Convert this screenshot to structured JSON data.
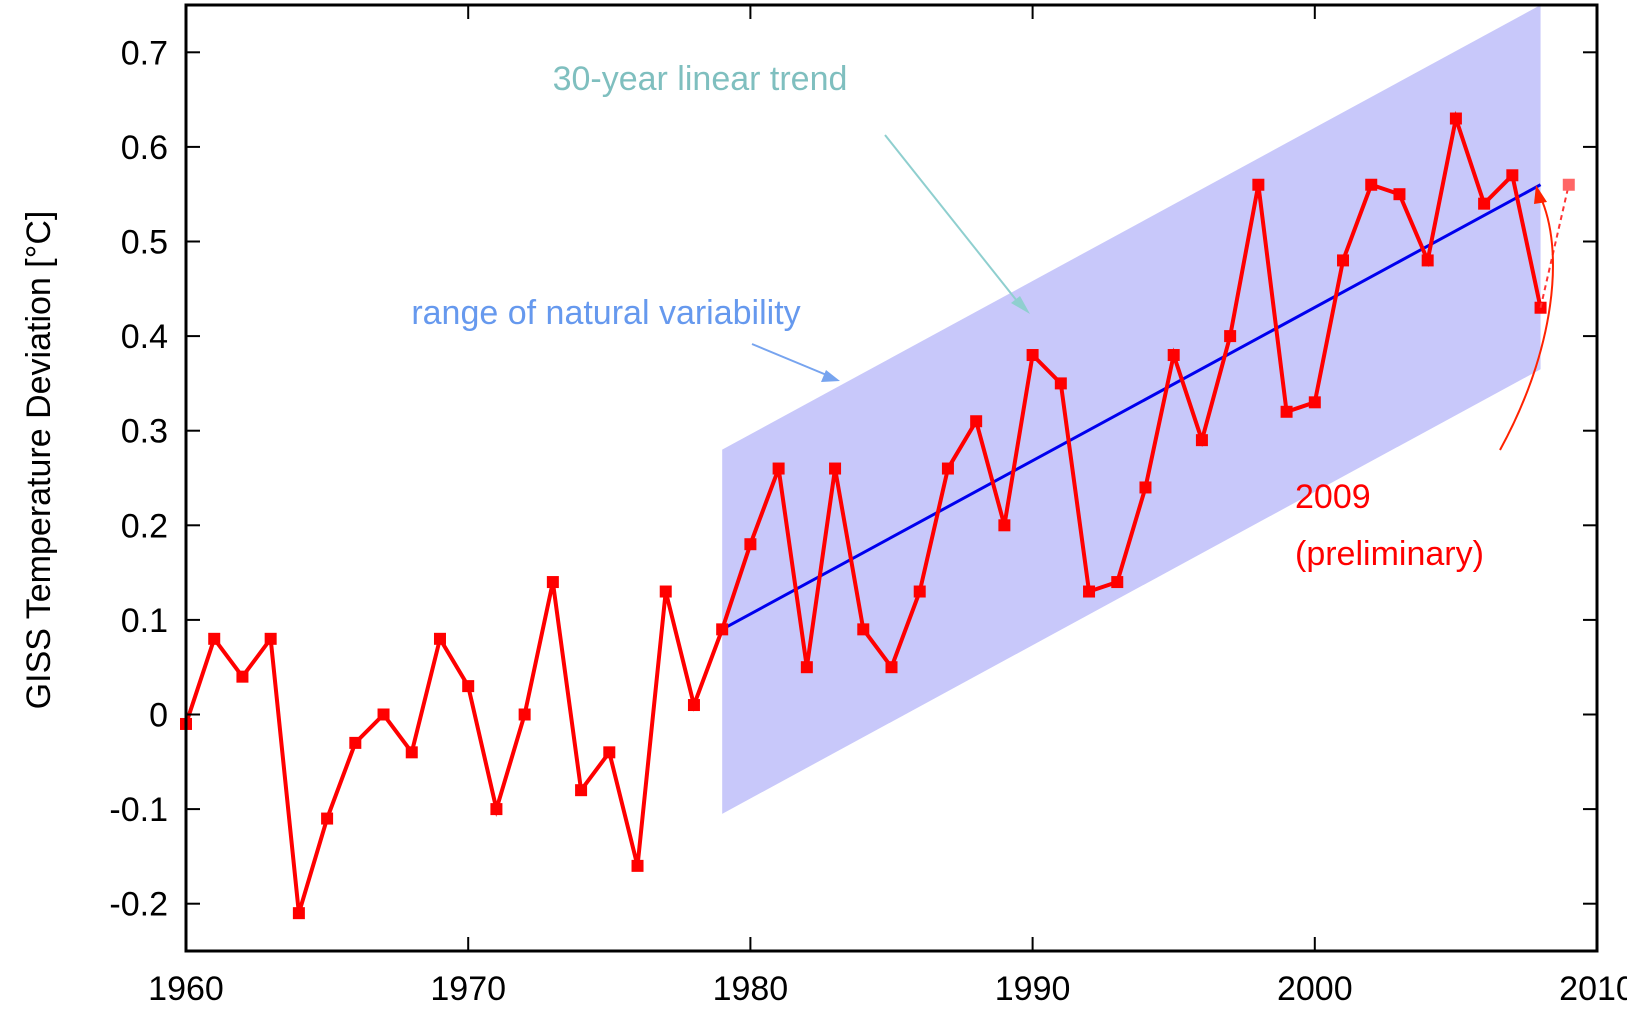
{
  "chart_data": {
    "type": "line",
    "ylabel": "GISS Temperature Deviation [°C]",
    "xlabel": "",
    "xlim": [
      1960,
      2010
    ],
    "ylim": [
      -0.25,
      0.75
    ],
    "x_ticks": [
      1960,
      1970,
      1980,
      1990,
      2000,
      2010
    ],
    "y_ticks": [
      -0.2,
      -0.1,
      0,
      0.1,
      0.2,
      0.3,
      0.4,
      0.5,
      0.6,
      0.7
    ],
    "x_tick_labels": [
      "1960",
      "1970",
      "1980",
      "1990",
      "2000",
      "2010"
    ],
    "y_tick_labels": [
      "-0.2",
      "-0.1",
      "0",
      "0.1",
      "0.2",
      "0.3",
      "0.4",
      "0.5",
      "0.6",
      "0.7"
    ],
    "grid": false,
    "series": [
      {
        "color": "#ff0000",
        "x": [
          1960,
          1961,
          1962,
          1963,
          1964,
          1965,
          1966,
          1967,
          1968,
          1969,
          1970,
          1971,
          1972,
          1973,
          1974,
          1975,
          1976,
          1977,
          1978,
          1979,
          1980,
          1981,
          1982,
          1983,
          1984,
          1985,
          1986,
          1987,
          1988,
          1989,
          1990,
          1991,
          1992,
          1993,
          1994,
          1995,
          1996,
          1997,
          1998,
          1999,
          2000,
          2001,
          2002,
          2003,
          2004,
          2005,
          2006,
          2007,
          2008
        ],
        "y": [
          -0.01,
          0.08,
          0.04,
          0.08,
          -0.21,
          -0.11,
          -0.03,
          0.0,
          -0.04,
          0.08,
          0.03,
          -0.1,
          0.0,
          0.14,
          -0.08,
          -0.04,
          -0.16,
          0.13,
          0.01,
          0.09,
          0.18,
          0.26,
          0.05,
          0.26,
          0.09,
          0.05,
          0.13,
          0.26,
          0.31,
          0.2,
          0.38,
          0.35,
          0.13,
          0.14,
          0.24,
          0.38,
          0.29,
          0.4,
          0.56,
          0.32,
          0.33,
          0.48,
          0.56,
          0.55,
          0.48,
          0.63,
          0.54,
          0.57,
          0.43
        ]
      }
    ],
    "preliminary_point": {
      "x": 2009,
      "y": 0.56,
      "color": "#ff6666"
    },
    "trend_line": {
      "x": [
        1979,
        2008
      ],
      "y": [
        0.09,
        0.56
      ],
      "color": "#0000ee"
    },
    "variability_band": {
      "x": [
        1979,
        2008
      ],
      "upper": [
        0.28,
        0.75
      ],
      "lower": [
        -0.105,
        0.365
      ],
      "color": "#c8c8fa"
    },
    "annotations": [
      {
        "text": "30-year linear trend",
        "color": "#7fbfbf"
      },
      {
        "text": "range of natural variability",
        "color": "#6699ee"
      },
      {
        "text": "2009",
        "color": "#ff0000"
      },
      {
        "text": "(preliminary)",
        "color": "#ff0000"
      }
    ]
  }
}
